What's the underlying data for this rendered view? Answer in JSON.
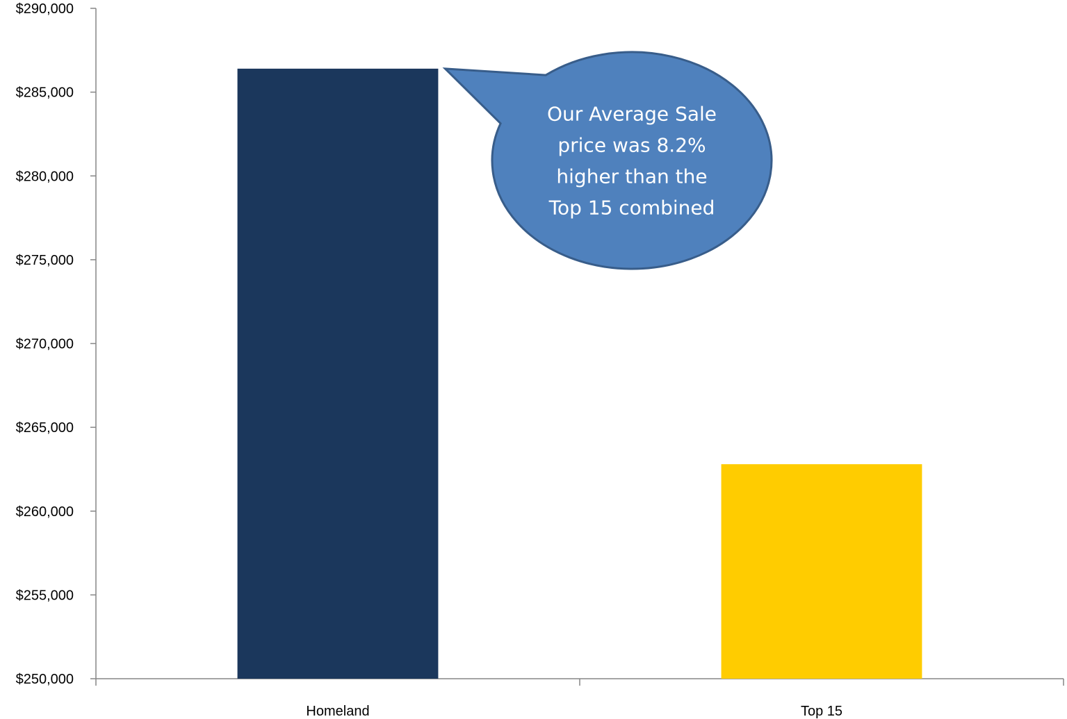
{
  "chart_data": {
    "type": "bar",
    "categories": [
      "Homeland",
      "Top 15"
    ],
    "values": [
      286400,
      262800
    ],
    "ylim": [
      250000,
      290000
    ],
    "yticks": [
      250000,
      255000,
      260000,
      265000,
      270000,
      275000,
      280000,
      285000,
      290000
    ],
    "ytick_labels": [
      "$250,000",
      "$255,000",
      "$260,000",
      "$265,000",
      "$270,000",
      "$275,000",
      "$280,000",
      "$285,000",
      "$290,000"
    ],
    "bar_colors": [
      "#1B375C",
      "#FFCC00"
    ],
    "grid": false,
    "legend": "none",
    "annotation": {
      "lines": [
        "Our Average Sale",
        "price was 8.2%",
        "higher than the",
        "Top 15 combined"
      ],
      "fill": "#4F81BD",
      "border": "#385D8A",
      "points_to": "Homeland"
    }
  }
}
